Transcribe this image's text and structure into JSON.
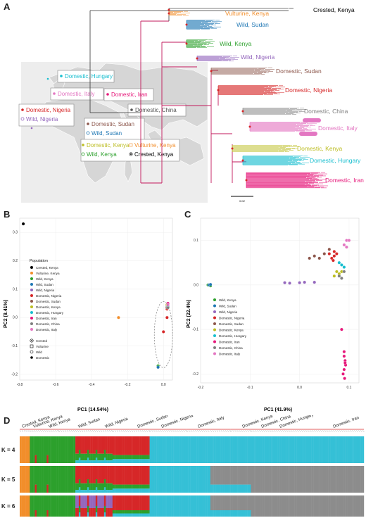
{
  "panels": {
    "a": "A",
    "b": "B",
    "c": "C",
    "d": "D"
  },
  "colors": {
    "crested_kenya": "#000000",
    "vulturine_kenya": "#f28e2b",
    "wild_kenya": "#2ca02c",
    "wild_sudan": "#1f77b4",
    "wild_nigeria": "#9467bd",
    "domestic_nigeria": "#d62728",
    "domestic_sudan": "#8c564b",
    "domestic_kenya": "#bcbd22",
    "domestic_hungary": "#17becf",
    "domestic_iran": "#e6187a",
    "domestic_china": "#7f7f7f",
    "domestic_italy": "#e377c2",
    "admix_cyan": "#35c0d6",
    "admix_grey": "#8c8c8c"
  },
  "tree": {
    "labels": [
      {
        "text": "Crested, Kenya",
        "color": "#000000"
      },
      {
        "text": "Vulturine, Kenya",
        "color": "#f28e2b"
      },
      {
        "text": "Wild, Sudan",
        "color": "#1f77b4"
      },
      {
        "text": "Wild, Kenya",
        "color": "#2ca02c"
      },
      {
        "text": "Wild, Nigeria",
        "color": "#9467bd"
      },
      {
        "text": "Domestic, Sudan",
        "color": "#8c564b"
      },
      {
        "text": "Domestic, Nigeria",
        "color": "#d62728"
      },
      {
        "text": "Domestic, China",
        "color": "#7f7f7f"
      },
      {
        "text": "Domestic, Italy",
        "color": "#e377c2"
      },
      {
        "text": "Domestic, Kenya",
        "color": "#bcbd22"
      },
      {
        "text": "Domestic, Hungary",
        "color": "#17becf"
      },
      {
        "text": "Domestic, Iran",
        "color": "#e6187a"
      }
    ],
    "scale_label": "0.02"
  },
  "map": {
    "boxes": [
      {
        "items": [
          {
            "text": "Domestic, Hungary",
            "color": "#17becf"
          }
        ]
      },
      {
        "items": [
          {
            "text": "Domestic, Italy",
            "color": "#e377c2"
          }
        ]
      },
      {
        "items": [
          {
            "text": "Domestic, Iran",
            "color": "#e6187a"
          }
        ]
      },
      {
        "items": [
          {
            "text": "Domestic, China",
            "color": "#555555"
          }
        ]
      },
      {
        "items": [
          {
            "text": "Domestic, Nigeria",
            "color": "#d62728"
          },
          {
            "text": "Wild, Nigeria",
            "color": "#9467bd"
          }
        ]
      },
      {
        "items": [
          {
            "text": "Domestic, Sudan",
            "color": "#8c564b"
          },
          {
            "text": "Wild, Sudan",
            "color": "#1f77b4"
          }
        ]
      },
      {
        "items": [
          {
            "text": "Domestic, Kenya",
            "color": "#bcbd22"
          },
          {
            "text": "Vulturine, Kenya",
            "color": "#f28e2b"
          },
          {
            "text": "Wild, Kenya",
            "color": "#2ca02c"
          },
          {
            "text": "Crested, Kenya",
            "color": "#000000"
          }
        ]
      }
    ]
  },
  "pca_b": {
    "xlabel": "PC1 (14.54%)",
    "ylabel": "PC2 (8.41%)",
    "xticks": [
      "-0.8",
      "-0.6",
      "-0.4",
      "-0.2",
      "0.0"
    ],
    "yticks": [
      "0.3",
      "0.2",
      "0.1",
      "0.0",
      "-0.1",
      "-0.2"
    ],
    "legend_title": "Population",
    "legend": [
      "Crested, Kenya",
      "Vulturine, Kenya",
      "Wild, Kenya",
      "Wild, Sudan",
      "Wild, Nigeria",
      "Domestic, Nigeria",
      "Domestic, Sudan",
      "Domestic, Kenya",
      "Domestic, Hungary",
      "Domestic, Iran",
      "Domestic, China",
      "Domestic, Italy"
    ],
    "shape_legend": [
      "Crested",
      "Vulturine",
      "Wild",
      "Domestic"
    ]
  },
  "pca_c": {
    "xlabel": "PC1 (41.9%)",
    "ylabel": "PC2 (22.4%)",
    "xticks": [
      "-0.2",
      "-0.1",
      "0.0",
      "0.1"
    ],
    "yticks": [
      "0.1",
      "0.0",
      "-0.1",
      "-0.2"
    ],
    "legend": [
      "Wild, Kenya",
      "Wild, Sudan",
      "Wild, Nigeria",
      "Domestic, Nigeria",
      "Domestic, Sudan",
      "Domestic, Kenya",
      "Domestic, Hungary",
      "Domestic, Iran",
      "Domestic, China",
      "Domestic, Italy"
    ]
  },
  "admixture": {
    "group_labels": [
      "Crested, Kenya",
      "Vulturine, Kenya",
      "Wild, Kenya",
      "Wild, Sudan",
      "Wild, Nigeria",
      "Domestic, Sudan",
      "Domestic, Nigeria",
      "Domestic, Italy",
      "Domestic, Kenya",
      "Domestic, China",
      "Domestic, Hungary",
      "Domestic, Iran"
    ],
    "k_labels": [
      "K = 4",
      "K = 5",
      "K = 6"
    ]
  },
  "chart_data": [
    {
      "type": "scatter",
      "xlabel": "PC1 (14.54%)",
      "ylabel": "PC2 (8.41%)",
      "xlim": [
        -0.8,
        0.05
      ],
      "ylim": [
        -0.22,
        0.35
      ],
      "series": [
        {
          "name": "Crested, Kenya",
          "points": [
            [
              -0.78,
              0.33
            ]
          ]
        },
        {
          "name": "Vulturine, Kenya",
          "points": [
            [
              -0.25,
              0.0
            ]
          ]
        },
        {
          "name": "Wild, Kenya",
          "points": [
            [
              -0.03,
              -0.17
            ]
          ]
        },
        {
          "name": "Wild, Sudan",
          "points": [
            [
              -0.03,
              -0.175
            ]
          ]
        },
        {
          "name": "Wild, Nigeria",
          "points": [
            [
              0.02,
              0.04
            ]
          ]
        },
        {
          "name": "Domestic, Nigeria",
          "points": [
            [
              0.02,
              0.03
            ],
            [
              0.0,
              -0.05
            ],
            [
              0.02,
              0.0
            ]
          ]
        },
        {
          "name": "Domestic, Sudan",
          "points": [
            [
              0.02,
              0.035
            ]
          ]
        },
        {
          "name": "Domestic, Kenya",
          "points": [
            [
              0.02,
              0.045
            ]
          ]
        },
        {
          "name": "Domestic, Hungary",
          "points": [
            [
              0.025,
              0.04
            ]
          ]
        },
        {
          "name": "Domestic, Iran",
          "points": [
            [
              0.025,
              0.05
            ]
          ]
        },
        {
          "name": "Domestic, China",
          "points": [
            [
              0.025,
              0.035
            ]
          ]
        },
        {
          "name": "Domestic, Italy",
          "points": [
            [
              0.025,
              0.045
            ]
          ]
        }
      ]
    },
    {
      "type": "scatter",
      "xlabel": "PC1 (41.9%)",
      "ylabel": "PC2 (22.4%)",
      "xlim": [
        -0.2,
        0.12
      ],
      "ylim": [
        -0.22,
        0.15
      ],
      "series": [
        {
          "name": "Wild, Kenya",
          "points": [
            [
              -0.185,
              0.0
            ],
            [
              -0.18,
              -0.002
            ]
          ]
        },
        {
          "name": "Wild, Sudan",
          "points": [
            [
              -0.183,
              0.0
            ],
            [
              -0.18,
              0.001
            ]
          ]
        },
        {
          "name": "Wild, Nigeria",
          "points": [
            [
              -0.03,
              0.005
            ],
            [
              -0.02,
              0.004
            ],
            [
              0.0,
              0.005
            ],
            [
              0.01,
              0.006
            ],
            [
              0.03,
              0.006
            ]
          ]
        },
        {
          "name": "Domestic, Nigeria",
          "points": [
            [
              0.06,
              0.07
            ],
            [
              0.07,
              0.065
            ],
            [
              0.065,
              0.06
            ],
            [
              0.07,
              0.075
            ],
            [
              0.075,
              0.07
            ],
            [
              0.068,
              0.055
            ]
          ]
        },
        {
          "name": "Domestic, Sudan",
          "points": [
            [
              0.02,
              0.06
            ],
            [
              0.03,
              0.065
            ],
            [
              0.04,
              0.06
            ],
            [
              0.05,
              0.07
            ],
            [
              0.06,
              0.08
            ]
          ]
        },
        {
          "name": "Domestic, Kenya",
          "points": [
            [
              0.07,
              0.02
            ],
            [
              0.075,
              0.03
            ],
            [
              0.08,
              0.025
            ],
            [
              0.085,
              0.03
            ]
          ]
        },
        {
          "name": "Domestic, Hungary",
          "points": [
            [
              0.08,
              0.05
            ],
            [
              0.085,
              0.045
            ],
            [
              0.09,
              0.04
            ]
          ]
        },
        {
          "name": "Domestic, Iran",
          "points": [
            [
              0.085,
              -0.1
            ],
            [
              0.09,
              -0.15
            ],
            [
              0.09,
              -0.16
            ],
            [
              0.092,
              -0.17
            ],
            [
              0.093,
              -0.18
            ],
            [
              0.09,
              -0.19
            ],
            [
              0.088,
              -0.2
            ],
            [
              0.091,
              -0.21
            ],
            [
              0.092,
              -0.175
            ]
          ]
        },
        {
          "name": "Domestic, China",
          "points": [
            [
              0.08,
              0.02
            ],
            [
              0.085,
              0.015
            ],
            [
              0.09,
              0.03
            ]
          ]
        },
        {
          "name": "Domestic, Italy",
          "points": [
            [
              0.09,
              0.09
            ],
            [
              0.095,
              0.1
            ],
            [
              0.1,
              0.1
            ],
            [
              0.095,
              0.085
            ]
          ]
        }
      ]
    }
  ]
}
